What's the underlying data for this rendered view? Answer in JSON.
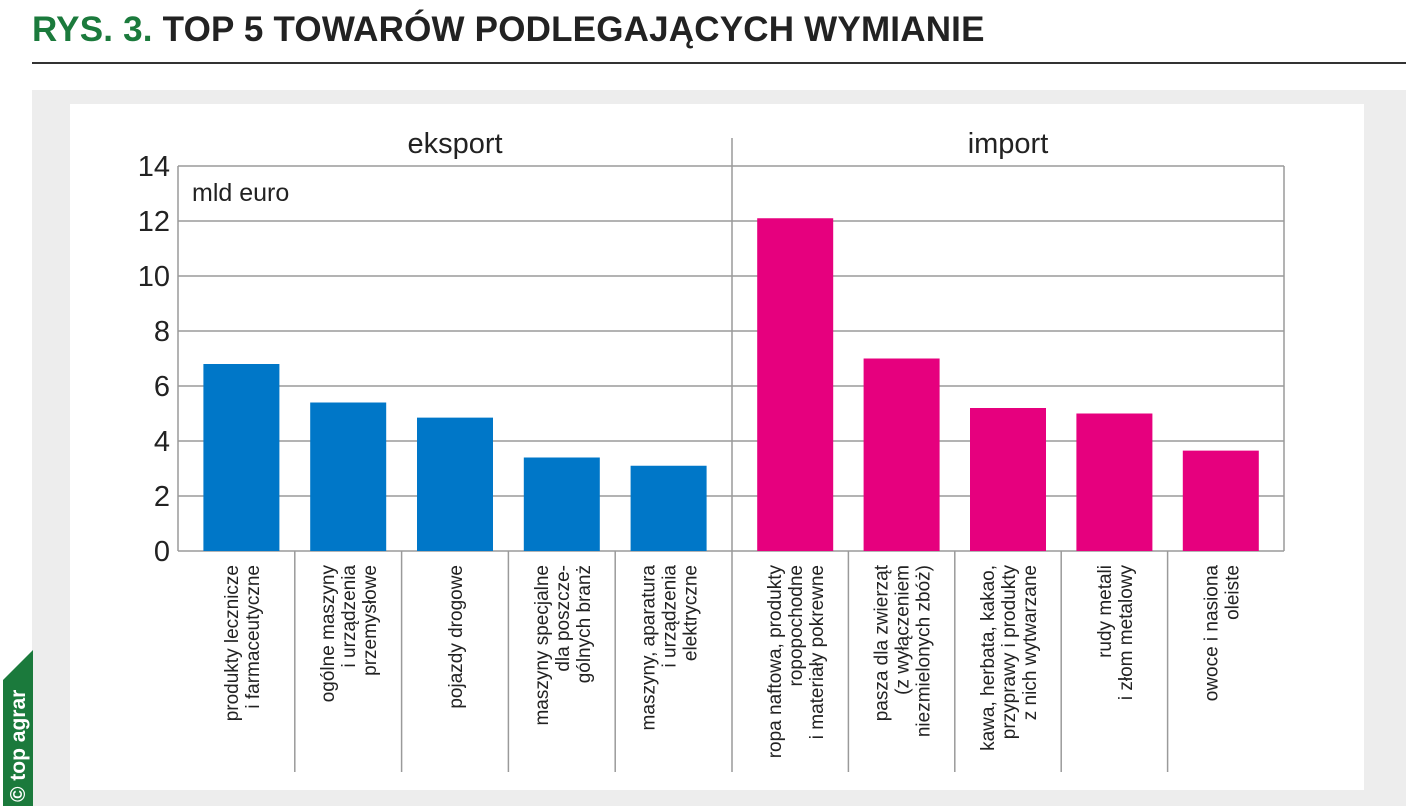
{
  "header": {
    "figure_number": "RYS. 3.",
    "title": "TOP 5 TOWARÓW PODLEGAJĄCYCH WYMIANIE"
  },
  "logo": {
    "text": "© top agrar"
  },
  "colors": {
    "export": "#0077c8",
    "import": "#e6007e",
    "accent": "#1b7a3c"
  },
  "chart_data": {
    "type": "bar",
    "title": "TOP 5 TOWARÓW PODLEGAJĄCYCH WYMIANIE",
    "ylabel": "mld euro",
    "ylim": [
      0,
      14
    ],
    "yticks": [
      0,
      2,
      4,
      6,
      8,
      10,
      12,
      14
    ],
    "grid": true,
    "groups": [
      {
        "name": "eksport",
        "color": "#0077c8",
        "categories": [
          [
            "produkty lecznicze",
            "i farmaceutyczne"
          ],
          [
            "ogólne maszyny",
            "i urządzenia",
            "przemysłowe"
          ],
          [
            "pojazdy drogowe"
          ],
          [
            "maszyny specjalne",
            "dla poszcze-",
            "gólnych branż"
          ],
          [
            "maszyny, aparatura",
            "i urządzenia",
            "elektryczne"
          ]
        ],
        "values": [
          6.8,
          5.4,
          4.85,
          3.4,
          3.1
        ]
      },
      {
        "name": "import",
        "color": "#e6007e",
        "categories": [
          [
            "ropa naftowa, produkty",
            "ropopochodne",
            "i materiały pokrewne"
          ],
          [
            "pasza dla zwierząt",
            "(z wyłączeniem",
            "niezmielonych zbóż)"
          ],
          [
            "kawa, herbata, kakao,",
            "przyprawy i produkty",
            "z nich wytwarzane"
          ],
          [
            "rudy metali",
            "i złom metalowy"
          ],
          [
            "owoce i nasiona",
            "oleiste"
          ]
        ],
        "values": [
          12.1,
          7.0,
          5.2,
          5.0,
          3.65
        ]
      }
    ]
  }
}
